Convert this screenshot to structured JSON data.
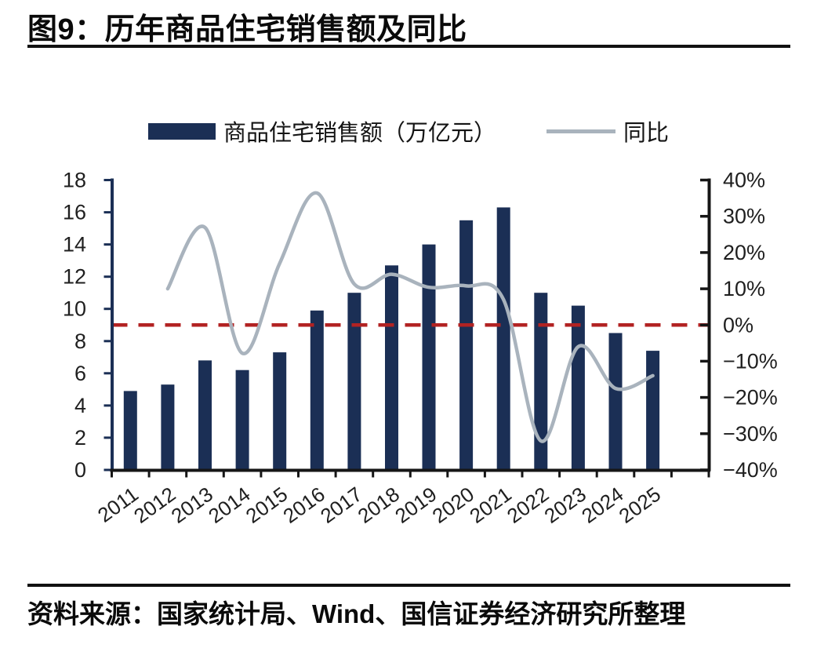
{
  "header": {
    "title": "图9：历年商品住宅销售额及同比"
  },
  "legend": {
    "bars_label": "商品住宅销售额（万亿元）",
    "line_label": "同比"
  },
  "footer": {
    "source": "资料来源：国家统计局、Wind、国信证券经济研究所整理"
  },
  "colors": {
    "bar": "#1b2f55",
    "line": "#a9b3bd",
    "zero_line": "#b22222",
    "left_axis": "#1b2f55",
    "axis_black": "#161616",
    "tick_text": "#1f1f1f"
  },
  "chart_data": {
    "type": "bar",
    "title": "历年商品住宅销售额及同比",
    "categories": [
      "2011",
      "2012",
      "2013",
      "2014",
      "2015",
      "2016",
      "2017",
      "2018",
      "2019",
      "2020",
      "2021",
      "2022",
      "2023",
      "2024",
      "2025"
    ],
    "series": [
      {
        "name": "商品住宅销售额（万亿元）",
        "type": "bar",
        "axis": "left",
        "values": [
          4.9,
          5.3,
          6.8,
          6.2,
          7.3,
          9.9,
          11.0,
          12.7,
          14.0,
          15.5,
          16.3,
          11.0,
          10.2,
          8.5,
          7.4
        ]
      },
      {
        "name": "同比",
        "type": "line",
        "axis": "right",
        "values": [
          null,
          10,
          26.9,
          -7.8,
          17,
          36.4,
          11.3,
          14,
          10.4,
          10.8,
          7,
          -32,
          -6,
          -17.5,
          -14
        ]
      }
    ],
    "left_axis": {
      "min": 0,
      "max": 18,
      "step": 2,
      "tick_labels": [
        "0",
        "2",
        "4",
        "6",
        "8",
        "10",
        "12",
        "14",
        "16",
        "18"
      ]
    },
    "right_axis": {
      "min": -40,
      "max": 40,
      "step": 10,
      "tick_labels": [
        "−40%",
        "−30%",
        "−20%",
        "−10%",
        "0%",
        "10%",
        "20%",
        "30%",
        "40%"
      ]
    },
    "zero_reference_line": {
      "value": 0,
      "axis": "right",
      "style": "dashed"
    },
    "grid": false,
    "legend_position": "top"
  }
}
